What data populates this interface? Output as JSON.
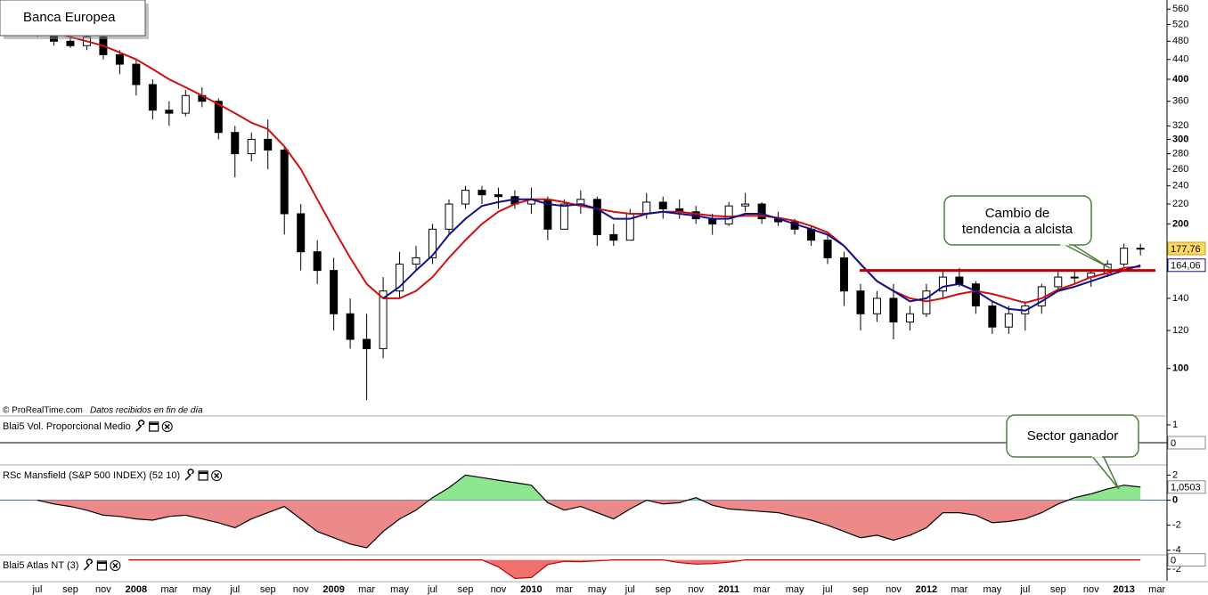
{
  "chart_data": [
    {
      "type": "candlestick",
      "title": "Banca Europea",
      "credit": "© ProRealTime.com",
      "credit_note": "Datos recibidos en fin de día",
      "categories": [
        "jul",
        null,
        "sep",
        null,
        "nov",
        null,
        "2008",
        null,
        "mar",
        null,
        "may",
        null,
        "jul",
        null,
        "sep",
        null,
        "nov",
        null,
        "2009",
        null,
        "mar",
        null,
        "may",
        null,
        "jul",
        null,
        "sep",
        null,
        "nov",
        null,
        "2010",
        null,
        "mar",
        null,
        "may",
        null,
        "jul",
        null,
        "sep",
        null,
        "nov",
        null,
        "2011",
        null,
        "mar",
        null,
        "may",
        null,
        "jul",
        null,
        "sep",
        null,
        "nov",
        null,
        "2012",
        null,
        "mar",
        null,
        "may",
        null,
        "jul",
        null,
        "sep",
        null,
        "nov",
        null,
        "2013",
        null,
        "mar"
      ],
      "open": [
        505,
        495,
        480,
        470,
        490,
        450,
        430,
        390,
        345,
        340,
        370,
        360,
        310,
        280,
        300,
        285,
        210,
        175,
        160,
        130,
        115,
        110,
        145,
        165,
        170,
        195,
        220,
        235,
        230,
        228,
        220,
        225,
        195,
        220,
        225,
        190,
        185,
        210,
        222,
        215,
        212,
        205,
        200,
        218,
        220,
        205,
        202,
        195,
        185,
        170,
        145,
        130,
        140,
        125,
        130,
        145,
        155,
        150,
        135,
        122,
        130,
        135,
        148,
        155,
        155,
        158,
        165,
        178,
        null
      ],
      "high": [
        520,
        500,
        495,
        500,
        495,
        460,
        440,
        400,
        360,
        380,
        385,
        365,
        320,
        310,
        330,
        290,
        220,
        185,
        170,
        140,
        130,
        155,
        175,
        180,
        200,
        225,
        240,
        240,
        238,
        235,
        238,
        228,
        225,
        235,
        228,
        200,
        215,
        232,
        228,
        225,
        218,
        210,
        222,
        232,
        222,
        212,
        205,
        198,
        190,
        175,
        150,
        145,
        150,
        135,
        150,
        160,
        162,
        152,
        138,
        135,
        138,
        150,
        160,
        160,
        160,
        168,
        182,
        182,
        null
      ],
      "low": [
        490,
        470,
        465,
        460,
        440,
        410,
        370,
        330,
        320,
        335,
        350,
        300,
        250,
        270,
        260,
        190,
        160,
        150,
        120,
        110,
        86,
        105,
        140,
        160,
        165,
        190,
        215,
        220,
        215,
        215,
        210,
        185,
        195,
        210,
        180,
        180,
        185,
        205,
        205,
        205,
        200,
        190,
        198,
        212,
        200,
        198,
        190,
        180,
        165,
        135,
        120,
        125,
        115,
        120,
        128,
        140,
        148,
        130,
        118,
        118,
        120,
        130,
        145,
        150,
        148,
        155,
        163,
        172,
        null
      ],
      "close": [
        495,
        480,
        470,
        490,
        450,
        430,
        390,
        345,
        340,
        370,
        360,
        310,
        280,
        300,
        285,
        210,
        175,
        160,
        130,
        115,
        110,
        145,
        165,
        170,
        195,
        220,
        235,
        230,
        228,
        220,
        225,
        195,
        220,
        225,
        190,
        185,
        210,
        222,
        215,
        212,
        205,
        200,
        218,
        220,
        205,
        202,
        195,
        185,
        170,
        145,
        130,
        140,
        125,
        130,
        145,
        155,
        150,
        135,
        122,
        130,
        135,
        148,
        155,
        155,
        158,
        165,
        178,
        177.76,
        null
      ],
      "overlays": [
        {
          "color": "#d01010",
          "values": [
            510,
            500,
            490,
            480,
            470,
            455,
            440,
            420,
            400,
            385,
            370,
            355,
            340,
            325,
            315,
            290,
            260,
            225,
            195,
            170,
            150,
            140,
            140,
            145,
            155,
            170,
            185,
            200,
            212,
            220,
            225,
            225,
            222,
            218,
            215,
            212,
            210,
            210,
            212,
            212,
            210,
            208,
            207,
            208,
            208,
            206,
            203,
            198,
            192,
            180,
            165,
            152,
            145,
            140,
            138,
            140,
            143,
            145,
            143,
            140,
            137,
            140,
            146,
            150,
            155,
            158,
            162,
            163,
            null
          ]
        },
        {
          "color": "#10108a",
          "values": [
            null,
            null,
            null,
            null,
            null,
            null,
            null,
            null,
            null,
            null,
            null,
            null,
            null,
            null,
            null,
            null,
            null,
            null,
            null,
            null,
            null,
            140,
            148,
            160,
            172,
            190,
            205,
            218,
            222,
            225,
            225,
            220,
            218,
            220,
            215,
            205,
            205,
            210,
            212,
            210,
            208,
            205,
            205,
            210,
            210,
            205,
            200,
            195,
            190,
            180,
            165,
            152,
            145,
            138,
            140,
            148,
            150,
            145,
            138,
            133,
            132,
            138,
            145,
            148,
            152,
            156,
            160,
            164.06,
            null
          ]
        }
      ],
      "ylim": [
        80,
        580
      ],
      "log": true,
      "yticks": [
        100,
        120,
        140,
        200,
        220,
        240,
        260,
        280,
        300,
        320,
        360,
        400,
        440,
        480,
        520,
        560
      ],
      "last_labels": [
        {
          "value": 177.76,
          "label": "177,76",
          "fill": "#ffd966",
          "color": "#000000"
        },
        {
          "value": 164.06,
          "label": "164,06",
          "fill": "#ffffff",
          "color": "#10108a"
        }
      ],
      "hline": {
        "value": 160,
        "color": "#c00000"
      },
      "annotations": [
        {
          "lines": [
            "Cambio de",
            "tendencia a alcista"
          ]
        }
      ]
    },
    {
      "type": "indicator",
      "title": "Blai5 Vol. Proporcional Medio",
      "ylim": [
        -1.2,
        1.35
      ],
      "yticks": [
        1
      ],
      "last_value": 0,
      "last_color": "#000000"
    },
    {
      "type": "area",
      "title": "RSc Mansfield (S&P 500 INDEX) (52 10)",
      "values": [
        0,
        -0.3,
        -0.5,
        -0.8,
        -1.2,
        -1.3,
        -1.5,
        -1.6,
        -1.3,
        -1.2,
        -1.5,
        -1.8,
        -2.2,
        -1.5,
        -1,
        -0.5,
        -1.5,
        -2.5,
        -3,
        -3.5,
        -3.8,
        -2.5,
        -1.5,
        -0.8,
        0.2,
        1,
        2,
        1.8,
        1.6,
        1.4,
        1.2,
        -0.2,
        -0.8,
        -0.5,
        -1,
        -1.5,
        -0.7,
        0,
        -0.3,
        -0.2,
        0.2,
        -0.4,
        -0.7,
        -0.8,
        -0.9,
        -1,
        -1.3,
        -1.6,
        -2,
        -2.5,
        -3,
        -2.8,
        -3.2,
        -2.8,
        -2.2,
        -1,
        -1,
        -1.2,
        -1.8,
        -1.7,
        -1.5,
        -1,
        -0.3,
        0.2,
        0.5,
        0.9,
        1.2,
        1.0503,
        null
      ],
      "ylim": [
        -4.3,
        2.6
      ],
      "yticks": [
        2,
        0,
        -2,
        -4
      ],
      "zero_line": true,
      "line_color": "#000000",
      "positive_color": "#8ee68e",
      "negative_color": "#ec8a8a",
      "last_value": {
        "value": 1.0503,
        "label": "1,0503"
      },
      "last_color": "#000000",
      "annotations": [
        {
          "text": "Sector ganador"
        }
      ]
    },
    {
      "type": "area",
      "title": "Blai5 Atlas NT (3)",
      "values": [
        0,
        0,
        0,
        0,
        0,
        0,
        0,
        0,
        0,
        0,
        0,
        0,
        0,
        0,
        0,
        0,
        0,
        0,
        0,
        0,
        0,
        0,
        0,
        0,
        0,
        0,
        0,
        0,
        -1.5,
        -4,
        -3.8,
        -1,
        -0.3,
        -0.4,
        -0.2,
        0,
        0,
        0,
        0,
        -0.6,
        -0.9,
        -0.8,
        -0.5,
        0,
        0,
        0,
        0,
        0,
        0,
        0,
        0,
        0,
        0,
        0,
        0,
        0,
        0,
        0,
        0,
        0,
        0,
        0,
        0,
        0,
        0,
        0,
        0,
        0,
        null
      ],
      "ylim": [
        -4.5,
        0.5
      ],
      "yticks": [
        -2
      ],
      "line_color": "#c00000",
      "positive_color": "#f07070",
      "negative_color": "#f07070",
      "last_value": 0,
      "last_color": "#d00000"
    }
  ]
}
